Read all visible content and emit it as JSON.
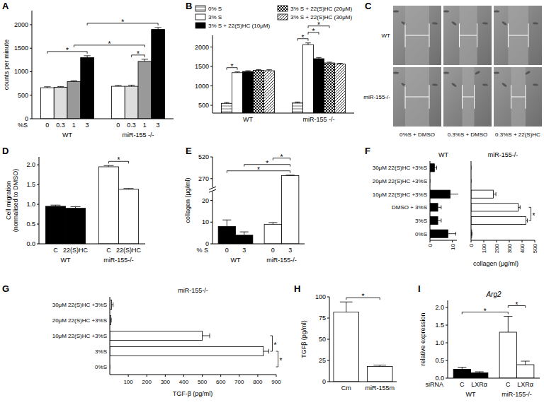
{
  "chart_data": [
    {
      "panel": "A",
      "type": "bar",
      "y_label": "counts per minute",
      "x_label": "%S",
      "categories": [
        "WT",
        "miR-155 -/-"
      ],
      "series": [
        {
          "name": "0",
          "color": "#ffffff",
          "values": [
            660,
            690
          ],
          "errors": [
            20,
            20
          ]
        },
        {
          "name": "0.3",
          "color": "#dddddd",
          "values": [
            670,
            690
          ],
          "errors": [
            15,
            25
          ]
        },
        {
          "name": "1",
          "color": "#999999",
          "values": [
            790,
            1220
          ],
          "errors": [
            20,
            45
          ]
        },
        {
          "name": "3",
          "color": "#000000",
          "values": [
            1300,
            1900
          ],
          "errors": [
            40,
            40
          ]
        }
      ],
      "ylim": [
        0,
        2300
      ],
      "yticks": [
        0,
        500,
        1000,
        1500,
        2000
      ],
      "significance": [
        {
          "from": [
            0,
            0
          ],
          "to": [
            3,
            0
          ],
          "label": "*"
        },
        {
          "from": [
            2,
            0
          ],
          "to": [
            2,
            1
          ],
          "label": "*"
        },
        {
          "from": [
            3,
            0
          ],
          "to": [
            3,
            1
          ],
          "label": "*"
        },
        {
          "from": [
            1,
            1
          ],
          "to": [
            2,
            1
          ],
          "label": "*"
        }
      ]
    },
    {
      "panel": "B",
      "type": "bar",
      "legend": "top",
      "categories": [
        "WT",
        "miR-155 -/-"
      ],
      "series": [
        {
          "name": "0% S",
          "color": "#777777",
          "marker": "hatch",
          "values": [
            550,
            560
          ],
          "errors": [
            25,
            25
          ]
        },
        {
          "name": "3% S",
          "color": "#ffffff",
          "values": [
            1340,
            2060
          ],
          "errors": [
            20,
            45
          ]
        },
        {
          "name": "3% S + 22(S)HC (10μM)",
          "color": "#000000",
          "values": [
            1370,
            1700
          ],
          "errors": [
            20,
            30
          ]
        },
        {
          "name": "3% S + 22(S)HC (20μM)",
          "color": "#000000",
          "marker": "checker",
          "values": [
            1400,
            1590
          ],
          "errors": [
            20,
            20
          ]
        },
        {
          "name": "3% S + 22(S)HC (30μM)",
          "color": "#000000",
          "marker": "diagonal",
          "values": [
            1390,
            1560
          ],
          "errors": [
            25,
            20
          ]
        }
      ],
      "ylim": [
        300,
        2300
      ],
      "yticks": [
        500,
        1000,
        1500,
        2000
      ],
      "significance": [
        {
          "from": [
            0,
            0
          ],
          "to": [
            1,
            0
          ],
          "label": "*"
        },
        {
          "from": [
            0,
            1
          ],
          "to": [
            1,
            1
          ],
          "label": "*"
        },
        {
          "from": [
            1,
            1
          ],
          "to": [
            2,
            1
          ],
          "label": "*"
        },
        {
          "from": [
            1,
            1
          ],
          "to": [
            3,
            1
          ],
          "label": "*"
        }
      ]
    },
    {
      "panel": "C",
      "type": "image",
      "rows": [
        "WT",
        "miR-155-/-"
      ],
      "columns": [
        "0%S + DMSO",
        "0.3%S + DMSO",
        "0.3%S + 22(S)HC"
      ]
    },
    {
      "panel": "D",
      "type": "bar",
      "y_label": "Cell migration (normalised to DMSO)",
      "categories": [
        "WT",
        "miR-155-/-"
      ],
      "colors": [
        "#000000",
        "#ffffff"
      ],
      "series": [
        {
          "name": "C",
          "values": [
            0.95,
            1.95
          ],
          "errors": [
            0.03,
            0.03
          ]
        },
        {
          "name": "22(S)HC",
          "values": [
            0.9,
            1.38
          ],
          "errors": [
            0.04,
            0.02
          ]
        }
      ],
      "ylim": [
        0,
        2.2
      ],
      "yticks": [
        {
          "value": 0,
          "label": "0.0"
        },
        {
          "value": 0.5,
          "label": "0.5"
        },
        {
          "value": 1,
          "label": "1.0"
        },
        {
          "value": 1.5,
          "label": "1.5"
        },
        {
          "value": 2,
          "label": "2.0"
        }
      ],
      "significance": [
        {
          "from": [
            0,
            1
          ],
          "to": [
            1,
            1
          ],
          "label": "*"
        }
      ]
    },
    {
      "panel": "E",
      "type": "bar",
      "y_label": "collagen (μg/ml)",
      "x_label": "% S",
      "categories": [
        "WT",
        "miR-155-/-"
      ],
      "colors": [
        "#000000",
        "#ffffff"
      ],
      "series": [
        {
          "name": "0",
          "values": [
            8,
            9
          ],
          "errors": [
            3,
            0.8
          ]
        },
        {
          "name": "3",
          "values": [
            4,
            305
          ],
          "errors": [
            1.5,
            6
          ]
        }
      ],
      "ylim": [
        0,
        520
      ],
      "yticks": [
        0,
        10,
        20,
        270,
        520
      ],
      "significance": [
        {
          "from": [
            0,
            0
          ],
          "to": [
            1,
            1
          ],
          "label": "*"
        },
        {
          "from": [
            1,
            0
          ],
          "to": [
            1,
            1
          ],
          "label": "*"
        },
        {
          "from": [
            0,
            1
          ],
          "to": [
            1,
            1
          ],
          "label": "*"
        }
      ]
    },
    {
      "panel": "F",
      "type": "bar",
      "orientation": "horizontal",
      "title": "WT",
      "categories": [
        "30μM 22(S)HC +3%S",
        "20μM 22(S)HC +3%S",
        "10μM 22(S)HC +3%S",
        "DMSO + 3%S",
        "3%S",
        "0%S"
      ],
      "values": [
        2,
        0,
        9,
        3.5,
        3.5,
        8
      ],
      "errors": [
        1,
        0,
        4,
        1.5,
        1.5,
        3.5
      ],
      "color": "#000000",
      "xlim": [
        0,
        12
      ],
      "xticks": [
        0,
        10
      ]
    },
    {
      "type": "bar",
      "orientation": "horizontal",
      "title": "miR-155-/-",
      "tick_labels": "x",
      "x_label": "collagen (μg/ml)",
      "categories": [
        null,
        null,
        null,
        null,
        null,
        null
      ],
      "values": [
        0,
        0,
        175,
        370,
        430,
        5
      ],
      "errors": [
        0,
        0,
        20,
        15,
        12,
        2
      ],
      "color": "#ffffff",
      "xlim": [
        0,
        500
      ],
      "xticks": [
        0,
        100,
        200,
        300,
        400,
        500
      ],
      "significance": [
        {
          "from": 3,
          "to": 4,
          "label": "*"
        }
      ]
    },
    {
      "panel": "G",
      "type": "bar",
      "orientation": "horizontal",
      "title": "miR-155-/-",
      "x_label": "TGF-β (pg/ml)",
      "categories": [
        "30μM 22(S)HC +3%S",
        "20μM 22(S)HC +3%S",
        "10μM 22(S)HC +3%S",
        "3%S",
        "0%S"
      ],
      "values": [
        10,
        5,
        500,
        830,
        0
      ],
      "errors": [
        8,
        3,
        40,
        30,
        0
      ],
      "color": "#ffffff",
      "xlim": [
        0,
        900
      ],
      "xticks": [
        100,
        200,
        300,
        400,
        500,
        600,
        700,
        800,
        900
      ],
      "significance": [
        {
          "from": 2,
          "to": 3,
          "label": "*"
        },
        {
          "from": 3,
          "to": 4,
          "label": "*"
        }
      ]
    },
    {
      "panel": "H",
      "type": "bar",
      "y_label": "TGFβ (pg/ml)",
      "categories": [
        "Cm",
        "miR-155m"
      ],
      "series": [
        {
          "color": "#ffffff",
          "values": [
            82,
            18
          ],
          "errors": [
            12,
            1.5
          ]
        }
      ],
      "ylim": [
        0,
        100
      ],
      "yticks": [
        0,
        25,
        50,
        75,
        100
      ],
      "significance": [
        {
          "from": [
            0,
            0
          ],
          "to": [
            0,
            1
          ],
          "label": "*"
        }
      ]
    },
    {
      "panel": "I",
      "type": "bar",
      "title": "Arg2",
      "y_label": "relative expression",
      "x_label": "siRNA",
      "categories": [
        "WT",
        "miR-155-/-"
      ],
      "colors": [
        "#000000",
        "#ffffff"
      ],
      "series": [
        {
          "name": "C",
          "values": [
            0.25,
            1.3
          ],
          "errors": [
            0.06,
            0.45
          ]
        },
        {
          "name": "LXRα",
          "values": [
            0.15,
            0.38
          ],
          "errors": [
            0.03,
            0.1
          ]
        }
      ],
      "ylim": [
        0,
        2.2
      ],
      "yticks": [
        {
          "value": 0,
          "label": "0.0"
        },
        {
          "value": 0.5,
          "label": "0.5"
        },
        {
          "value": 1,
          "label": "1.0"
        },
        {
          "value": 1.5,
          "label": "1.5"
        },
        {
          "value": 2,
          "label": "2.0"
        }
      ],
      "significance": [
        {
          "from": [
            0,
            0
          ],
          "to": [
            0,
            1
          ],
          "label": "*"
        },
        {
          "from": [
            0,
            1
          ],
          "to": [
            1,
            1
          ],
          "label": "*"
        }
      ]
    }
  ]
}
